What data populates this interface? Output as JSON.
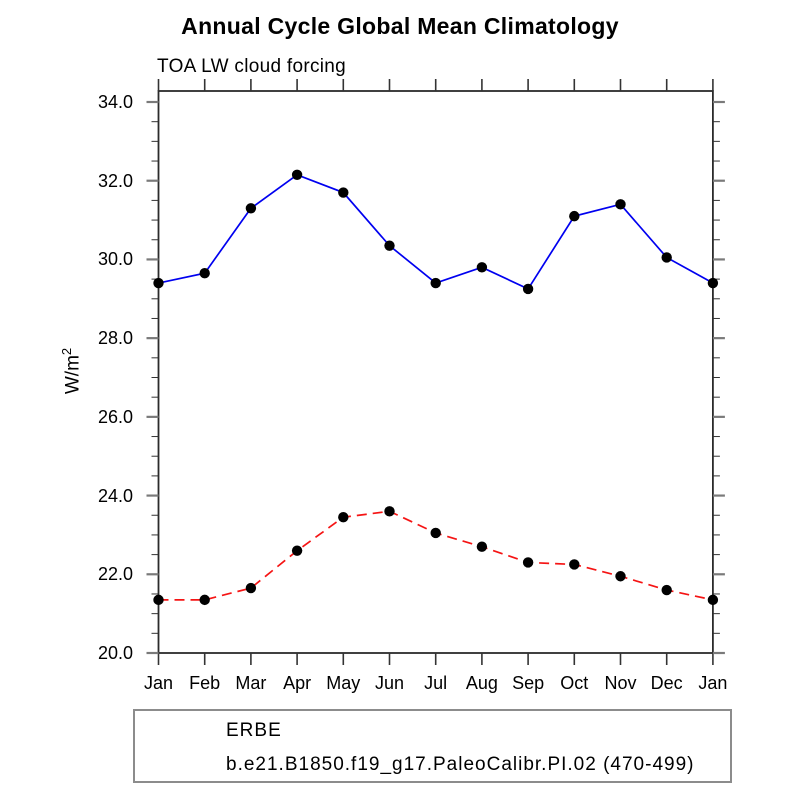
{
  "chart_data": {
    "type": "line",
    "title": "Annual Cycle Global Mean Climatology",
    "subtitle": "TOA LW cloud forcing",
    "ylabel": "W/m²",
    "ylabel_base": "W/m",
    "ylabel_exp": "2",
    "x_categories": [
      "Jan",
      "Feb",
      "Mar",
      "Apr",
      "May",
      "Jun",
      "Jul",
      "Aug",
      "Sep",
      "Oct",
      "Nov",
      "Dec",
      "Jan"
    ],
    "series": [
      {
        "name": "ERBE",
        "line_style": "solid",
        "line_color": "#0000f0",
        "marker": "filled-circle",
        "marker_color": "#000000",
        "values": [
          29.4,
          29.65,
          31.3,
          32.15,
          31.7,
          30.35,
          29.4,
          29.8,
          29.25,
          31.1,
          31.4,
          30.05,
          29.4
        ]
      },
      {
        "name": "b.e21.B1850.f19_g17.PaleoCalibr.PI.02 (470-499)",
        "line_style": "dashed",
        "line_color": "#f51414",
        "marker": "filled-circle",
        "marker_color": "#000000",
        "values": [
          21.35,
          21.35,
          21.65,
          22.6,
          23.45,
          23.6,
          23.05,
          22.7,
          22.3,
          22.25,
          21.95,
          21.6,
          21.35
        ]
      }
    ],
    "ylim": [
      20.0,
      34.3
    ],
    "ytick_values": [
      34,
      32,
      30,
      28,
      26,
      24,
      22,
      20
    ],
    "ytick_labels": [
      "34.0",
      "32.0",
      "30.0",
      "28.0",
      "26.0",
      "24.0",
      "22.0",
      "20.0"
    ],
    "y_minor_step": 0.5,
    "grid": false,
    "legend_position": "bottom-left-box",
    "frame": "full-box-outward-ticks"
  }
}
